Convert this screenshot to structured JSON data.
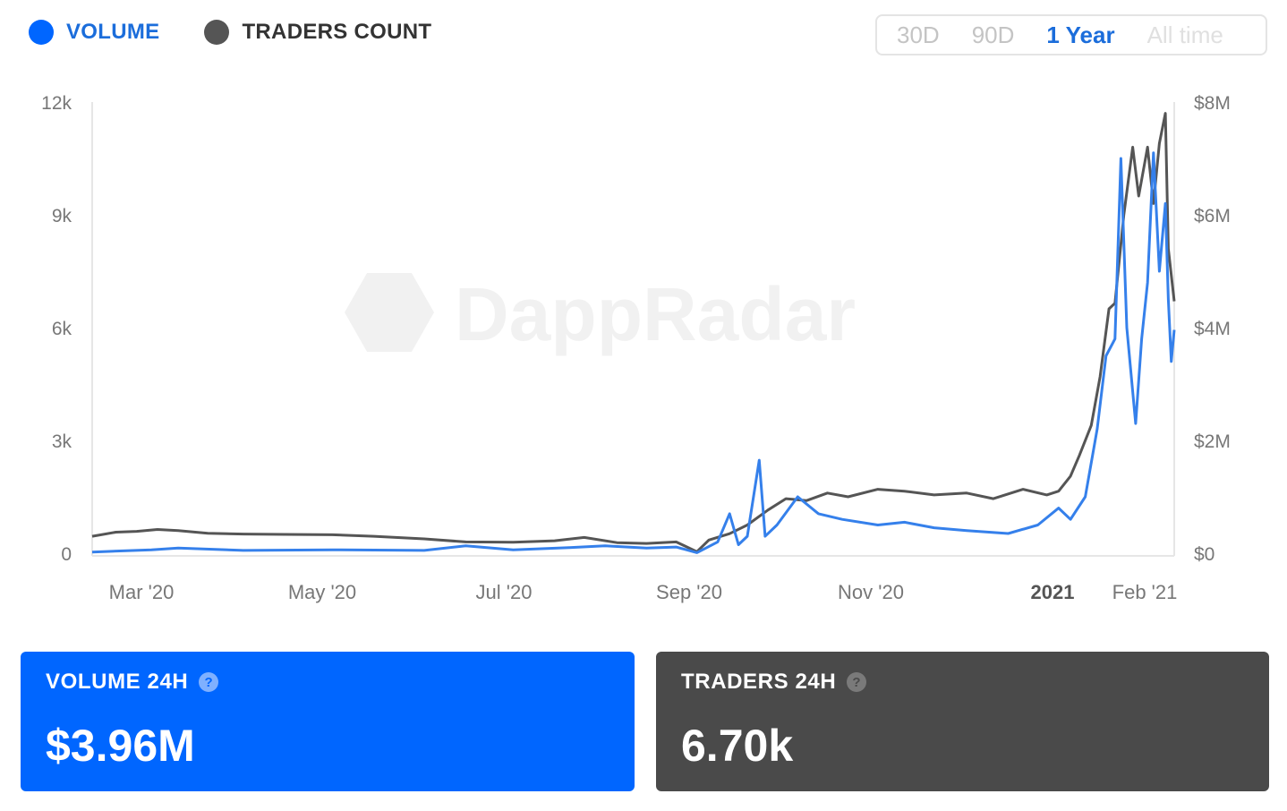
{
  "legend": {
    "volume_label": "VOLUME",
    "traders_label": "TRADERS COUNT"
  },
  "range_selector": {
    "options": [
      "30D",
      "90D",
      "1 Year",
      "All time"
    ],
    "selected": "1 Year"
  },
  "colors": {
    "volume": "#3580eb",
    "traders": "#555555",
    "accent": "#1b6ddb",
    "volume_card": "#0066ff",
    "traders_card": "#4a4a4a"
  },
  "watermark": "DappRadar",
  "chart_data": {
    "type": "line",
    "x_tick_labels": [
      "Mar '20",
      "May '20",
      "Jul '20",
      "Sep '20",
      "Nov '20",
      "2021",
      "Feb '21"
    ],
    "x_range": [
      "2020-02-10",
      "2021-02-09"
    ],
    "y_left": {
      "label": "",
      "ticks": [
        "0",
        "3k",
        "6k",
        "9k",
        "12k"
      ],
      "range": [
        0,
        12000
      ]
    },
    "y_right": {
      "label": "",
      "ticks": [
        "$0",
        "$2M",
        "$4M",
        "$6M",
        "$8M"
      ],
      "range": [
        0,
        8000000
      ]
    },
    "grid": false,
    "series": [
      {
        "name": "TRADERS COUNT",
        "axis": "left",
        "points": [
          [
            "2020-02-10",
            450
          ],
          [
            "2020-02-18",
            560
          ],
          [
            "2020-02-25",
            580
          ],
          [
            "2020-03-03",
            630
          ],
          [
            "2020-03-10",
            600
          ],
          [
            "2020-03-20",
            530
          ],
          [
            "2020-04-01",
            510
          ],
          [
            "2020-04-15",
            500
          ],
          [
            "2020-05-01",
            490
          ],
          [
            "2020-05-15",
            450
          ],
          [
            "2020-06-01",
            380
          ],
          [
            "2020-06-15",
            300
          ],
          [
            "2020-07-01",
            290
          ],
          [
            "2020-07-15",
            330
          ],
          [
            "2020-07-25",
            420
          ],
          [
            "2020-08-05",
            280
          ],
          [
            "2020-08-15",
            260
          ],
          [
            "2020-08-25",
            300
          ],
          [
            "2020-09-01",
            40
          ],
          [
            "2020-09-05",
            350
          ],
          [
            "2020-09-12",
            520
          ],
          [
            "2020-09-18",
            750
          ],
          [
            "2020-09-25",
            1150
          ],
          [
            "2020-10-01",
            1450
          ],
          [
            "2020-10-08",
            1400
          ],
          [
            "2020-10-15",
            1600
          ],
          [
            "2020-10-22",
            1500
          ],
          [
            "2020-11-01",
            1700
          ],
          [
            "2020-11-10",
            1650
          ],
          [
            "2020-11-20",
            1550
          ],
          [
            "2020-12-01",
            1600
          ],
          [
            "2020-12-10",
            1450
          ],
          [
            "2020-12-20",
            1700
          ],
          [
            "2020-12-28",
            1550
          ],
          [
            "2021-01-01",
            1650
          ],
          [
            "2021-01-05",
            2050
          ],
          [
            "2021-01-08",
            2600
          ],
          [
            "2021-01-12",
            3400
          ],
          [
            "2021-01-15",
            4700
          ],
          [
            "2021-01-18",
            6500
          ],
          [
            "2021-01-20",
            6650
          ],
          [
            "2021-01-23",
            9000
          ],
          [
            "2021-01-26",
            10800
          ],
          [
            "2021-01-28",
            9500
          ],
          [
            "2021-01-31",
            10800
          ],
          [
            "2021-02-02",
            9300
          ],
          [
            "2021-02-04",
            10900
          ],
          [
            "2021-02-06",
            11700
          ],
          [
            "2021-02-07",
            8100
          ],
          [
            "2021-02-08",
            7400
          ],
          [
            "2021-02-09",
            6700
          ]
        ]
      },
      {
        "name": "VOLUME",
        "axis": "right",
        "points": [
          [
            "2020-02-10",
            20000
          ],
          [
            "2020-03-01",
            60000
          ],
          [
            "2020-03-10",
            90000
          ],
          [
            "2020-04-01",
            50000
          ],
          [
            "2020-05-01",
            60000
          ],
          [
            "2020-06-01",
            50000
          ],
          [
            "2020-06-15",
            130000
          ],
          [
            "2020-07-01",
            60000
          ],
          [
            "2020-07-20",
            100000
          ],
          [
            "2020-08-01",
            130000
          ],
          [
            "2020-08-15",
            90000
          ],
          [
            "2020-08-25",
            110000
          ],
          [
            "2020-09-01",
            10000
          ],
          [
            "2020-09-08",
            200000
          ],
          [
            "2020-09-12",
            700000
          ],
          [
            "2020-09-15",
            150000
          ],
          [
            "2020-09-18",
            300000
          ],
          [
            "2020-09-22",
            1650000
          ],
          [
            "2020-09-24",
            300000
          ],
          [
            "2020-09-28",
            500000
          ],
          [
            "2020-10-05",
            1000000
          ],
          [
            "2020-10-12",
            700000
          ],
          [
            "2020-10-20",
            600000
          ],
          [
            "2020-11-01",
            500000
          ],
          [
            "2020-11-10",
            550000
          ],
          [
            "2020-11-20",
            450000
          ],
          [
            "2020-12-01",
            400000
          ],
          [
            "2020-12-15",
            350000
          ],
          [
            "2020-12-25",
            500000
          ],
          [
            "2021-01-01",
            800000
          ],
          [
            "2021-01-05",
            600000
          ],
          [
            "2021-01-10",
            1000000
          ],
          [
            "2021-01-14",
            2200000
          ],
          [
            "2021-01-17",
            3500000
          ],
          [
            "2021-01-20",
            3800000
          ],
          [
            "2021-01-22",
            7000000
          ],
          [
            "2021-01-24",
            4000000
          ],
          [
            "2021-01-27",
            2300000
          ],
          [
            "2021-01-29",
            3800000
          ],
          [
            "2021-01-31",
            4800000
          ],
          [
            "2021-02-02",
            7100000
          ],
          [
            "2021-02-04",
            5000000
          ],
          [
            "2021-02-06",
            6200000
          ],
          [
            "2021-02-07",
            4500000
          ],
          [
            "2021-02-08",
            3400000
          ],
          [
            "2021-02-09",
            3960000
          ]
        ]
      }
    ]
  },
  "cards": {
    "volume": {
      "title": "VOLUME 24H",
      "value": "$3.96M"
    },
    "traders": {
      "title": "TRADERS 24H",
      "value": "6.70k"
    }
  }
}
